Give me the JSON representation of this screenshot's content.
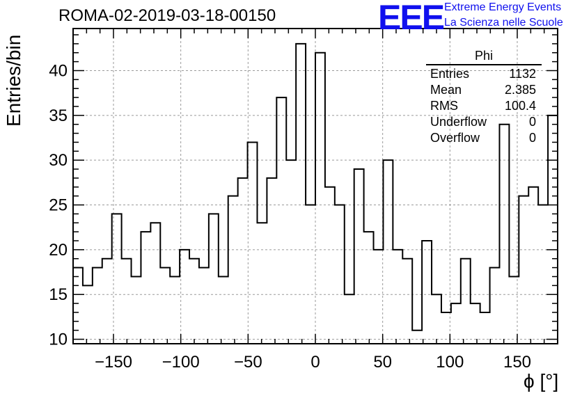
{
  "title": "ROMA-02-2019-03-18-00150",
  "logo": {
    "mark": "EEE",
    "line1": "Extreme Energy Events",
    "line2": "La Scienza nelle Scuole"
  },
  "stats_box": {
    "name": "Phi",
    "rows": [
      {
        "label": "Entries",
        "value": "1132"
      },
      {
        "label": "Mean",
        "value": "2.385"
      },
      {
        "label": "RMS",
        "value": "100.4"
      },
      {
        "label": "Underflow",
        "value": "0"
      },
      {
        "label": "Overflow",
        "value": "0"
      }
    ]
  },
  "chart_data": {
    "type": "bar",
    "style": "step-histogram",
    "xlabel": "ϕ [°]",
    "ylabel": "Entries/bin",
    "xlim": [
      -180,
      180
    ],
    "ylim": [
      9.5,
      44.7
    ],
    "bin_width": 7.2,
    "x_ticks": [
      "−150",
      "−100",
      "−50",
      "0",
      "50",
      "100",
      "150"
    ],
    "x_tick_values": [
      -150,
      -100,
      -50,
      0,
      50,
      100,
      150
    ],
    "y_ticks": [
      "10",
      "15",
      "20",
      "25",
      "30",
      "35",
      "40"
    ],
    "y_tick_values": [
      10,
      15,
      20,
      25,
      30,
      35,
      40
    ],
    "grid": true,
    "values": [
      18,
      16,
      18,
      19,
      24,
      19,
      17,
      22,
      23,
      18,
      17,
      20,
      19,
      18,
      24,
      17,
      26,
      28,
      32,
      23,
      28,
      37,
      30,
      43,
      25,
      42,
      27,
      25,
      15,
      29,
      22,
      20,
      30,
      20,
      19,
      11,
      21,
      15,
      13,
      14,
      19,
      14,
      13,
      18,
      34,
      17,
      26,
      27,
      25,
      35
    ],
    "line_color": "#000000",
    "grid_color": "#999999"
  }
}
